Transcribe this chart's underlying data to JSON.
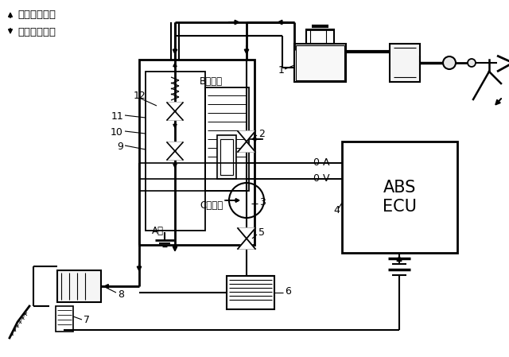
{
  "background": "#ffffff",
  "lc": "#000000",
  "labels": {
    "tl1": "制动踏板放松",
    "tl2": "制动踏板踩下",
    "B_open": "B孔打开",
    "C_closed": "C孔关闭",
    "A_hole": "A孔",
    "oA": "0 A",
    "oV": "0 V",
    "ABS_ECU": "ABS\nECU",
    "n1": "1",
    "n2": "2",
    "n3": "3",
    "n4": "4",
    "n5": "5",
    "n6": "6",
    "n7": "7",
    "n8": "8",
    "n9": "9",
    "n10": "10",
    "n11": "11",
    "n12": "12"
  }
}
